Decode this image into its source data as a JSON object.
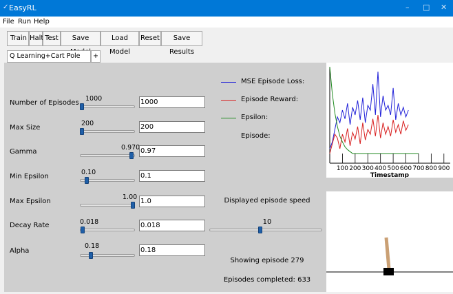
{
  "window": {
    "title": "EasyRL",
    "icon": "feather-icon",
    "controls": {
      "minimize": "–",
      "maximize": "□",
      "close": "✕"
    }
  },
  "menu": [
    "File",
    "Run",
    "Help"
  ],
  "toolbar": [
    "Train",
    "Halt",
    "Test",
    "Save Model",
    "Load Model",
    "Reset",
    "Save Results"
  ],
  "tabs": {
    "active": "Q Learning+Cart Pole Discrete",
    "add": "+"
  },
  "params": [
    {
      "label": "Number of Episodes",
      "slider_value": "1000",
      "slider_fraction": 0.0,
      "input_value": "1000"
    },
    {
      "label": "Max Size",
      "slider_value": "200",
      "slider_fraction": 0.0,
      "input_value": "200"
    },
    {
      "label": "Gamma",
      "slider_value": "0.970",
      "slider_fraction": 0.97,
      "input_value": "0.97"
    },
    {
      "label": "Min Epsilon",
      "slider_value": "0.10",
      "slider_fraction": 0.1,
      "input_value": "0.1"
    },
    {
      "label": "Max Epsilon",
      "slider_value": "1.00",
      "slider_fraction": 1.0,
      "input_value": "1.0"
    },
    {
      "label": "Decay Rate",
      "slider_value": "0.018",
      "slider_fraction": 0.018,
      "input_value": "0.018"
    },
    {
      "label": "Alpha",
      "slider_value": "0.18",
      "slider_fraction": 0.18,
      "input_value": "0.18"
    }
  ],
  "legend": [
    {
      "label": "MSE Episode Loss:",
      "color": "#1f1fd8"
    },
    {
      "label": "Episode Reward:",
      "color": "#d81f1f"
    },
    {
      "label": "Epsilon:",
      "color": "#1f8a1f"
    },
    {
      "label": "Episode:",
      "color": ""
    }
  ],
  "speed": {
    "label": "Displayed episode speed",
    "value": "10",
    "fraction": 0.45
  },
  "status": {
    "showing": "Showing episode 279",
    "completed": "Episodes completed: 633"
  },
  "chart_data": {
    "type": "line",
    "xlabel": "Timestamp",
    "ylabel": "",
    "xlim": [
      0,
      950
    ],
    "x_ticks": [
      "100",
      "200",
      "300",
      "400",
      "500",
      "600",
      "700",
      "800",
      "900"
    ],
    "series": [
      {
        "color": "#1f1fd8",
        "x": [
          0,
          20,
          40,
          60,
          80,
          100,
          120,
          140,
          160,
          180,
          200,
          220,
          240,
          260,
          280,
          300,
          320,
          340,
          360,
          380,
          400,
          420,
          440,
          460,
          480,
          500,
          520,
          540,
          560,
          580,
          600,
          620
        ],
        "values": [
          0.15,
          0.22,
          0.35,
          0.48,
          0.42,
          0.55,
          0.46,
          0.62,
          0.4,
          0.58,
          0.5,
          0.65,
          0.45,
          0.68,
          0.42,
          0.6,
          0.55,
          0.82,
          0.5,
          0.95,
          0.48,
          0.7,
          0.55,
          0.6,
          0.5,
          0.78,
          0.45,
          0.62,
          0.5,
          0.58,
          0.48,
          0.55
        ]
      },
      {
        "color": "#d81f1f",
        "x": [
          0,
          20,
          40,
          60,
          80,
          100,
          120,
          140,
          160,
          180,
          200,
          220,
          240,
          260,
          280,
          300,
          320,
          340,
          360,
          380,
          400,
          420,
          440,
          460,
          480,
          500,
          520,
          540,
          560,
          580,
          600,
          620
        ],
        "values": [
          0.1,
          0.2,
          0.3,
          0.26,
          0.15,
          0.3,
          0.22,
          0.36,
          0.18,
          0.32,
          0.25,
          0.38,
          0.2,
          0.42,
          0.24,
          0.35,
          0.3,
          0.46,
          0.28,
          0.5,
          0.26,
          0.42,
          0.3,
          0.38,
          0.28,
          0.45,
          0.32,
          0.4,
          0.3,
          0.44,
          0.34,
          0.4
        ]
      },
      {
        "color": "#1f8a1f",
        "x": [
          0,
          20,
          40,
          60,
          80,
          100,
          120,
          140,
          160,
          180,
          200,
          250,
          300,
          400,
          500,
          600,
          700
        ],
        "values": [
          1.0,
          0.72,
          0.52,
          0.38,
          0.28,
          0.22,
          0.17,
          0.14,
          0.12,
          0.1,
          0.1,
          0.1,
          0.1,
          0.1,
          0.1,
          0.1,
          0.1
        ]
      }
    ]
  }
}
